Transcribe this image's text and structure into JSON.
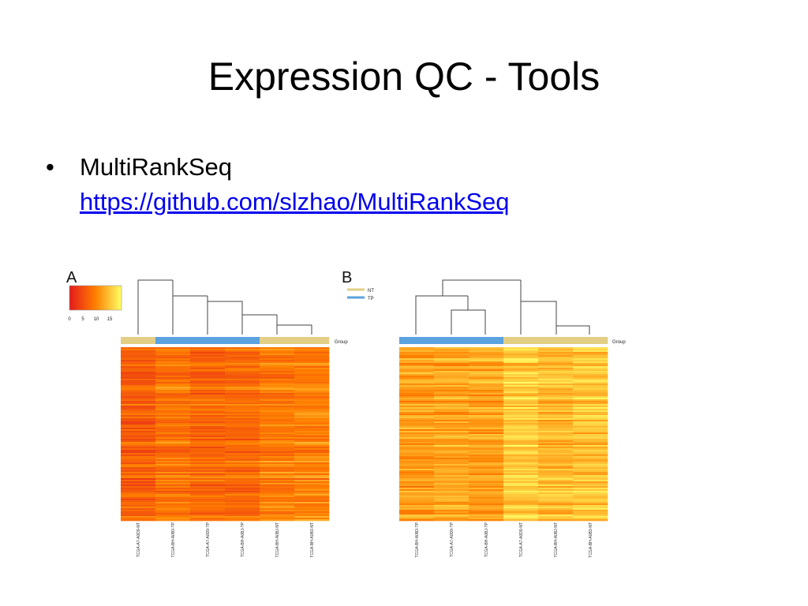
{
  "slide": {
    "title": "Expression QC - Tools",
    "bullet": {
      "symbol": "•",
      "text": "MultiRankSeq",
      "link": "https://github.com/slzhao/MultiRankSeq"
    }
  },
  "figure": {
    "panel_a": {
      "label": "A",
      "color_key": {
        "ticks": [
          "0",
          "5",
          "10",
          "15"
        ],
        "colors": [
          "#e41a1c",
          "#ff7f00",
          "#ffff66"
        ]
      },
      "group_label": "Group",
      "group_colors": [
        "#e2cf85",
        "#5aa2e0",
        "#5aa2e0",
        "#5aa2e0",
        "#e2cf85",
        "#e2cf85"
      ],
      "columns": [
        "TCGA-A7-A0D9-NT",
        "TCGA-BH-A0B3-TP",
        "TCGA-A7-A0D9-TP",
        "TCGA-BH-A0BJ-TP",
        "TCGA-BH-A0BJ-NT",
        "TCGA-BH-A0B3-NT"
      ]
    },
    "panel_b": {
      "label": "B",
      "legend": [
        {
          "name": "NT",
          "color": "#e2cf85"
        },
        {
          "name": "TP",
          "color": "#5aa2e0"
        }
      ],
      "group_label": "Group",
      "group_colors": [
        "#5aa2e0",
        "#5aa2e0",
        "#5aa2e0",
        "#e2cf85",
        "#e2cf85",
        "#e2cf85"
      ],
      "columns": [
        "TCGA-BH-A0B3-TP",
        "TCGA-A7-A0D9-TP",
        "TCGA-BH-A0BJ-TP",
        "TCGA-A7-A0D9-NT",
        "TCGA-BH-A0BJ-NT",
        "TCGA-BH-A0B3-NT"
      ]
    }
  }
}
